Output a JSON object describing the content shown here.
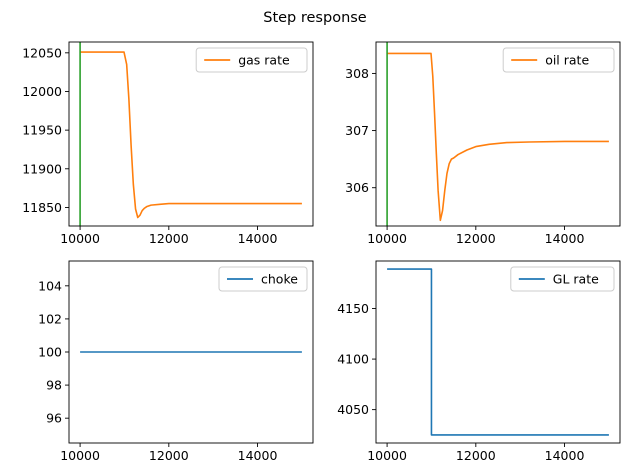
{
  "figure": {
    "title": "Step response"
  },
  "chart_data": [
    {
      "type": "line",
      "name": "gas",
      "xlim": [
        9750,
        15250
      ],
      "ylim": [
        11826,
        12064
      ],
      "xticks": [
        10000,
        12000,
        14000
      ],
      "yticks": [
        11850,
        11900,
        11950,
        12000,
        12050
      ],
      "xtick_labels": [
        "10000",
        "12000",
        "14000"
      ],
      "ytick_labels": [
        "11850",
        "11900",
        "11950",
        "12000",
        "12050"
      ],
      "legend": {
        "position": "top-right"
      },
      "series": [
        {
          "name": "gas rate",
          "color": "#ff7f0e",
          "x": [
            10000,
            10990,
            11050,
            11100,
            11150,
            11200,
            11250,
            11300,
            11350,
            11400,
            11450,
            11500,
            11600,
            11800,
            12000,
            12500,
            13000,
            14000,
            15000
          ],
          "y": [
            12051,
            12051,
            12035,
            11990,
            11930,
            11880,
            11848,
            11837,
            11840,
            11846,
            11849,
            11851,
            11853,
            11854,
            11855,
            11855,
            11855,
            11855,
            11855
          ]
        }
      ],
      "vlines": [
        {
          "x": 10000,
          "color": "#2ca02c"
        }
      ]
    },
    {
      "type": "line",
      "name": "oil",
      "xlim": [
        9750,
        15250
      ],
      "ylim": [
        305.33,
        308.55
      ],
      "xticks": [
        10000,
        12000,
        14000
      ],
      "yticks": [
        306,
        307,
        308
      ],
      "xtick_labels": [
        "10000",
        "12000",
        "14000"
      ],
      "ytick_labels": [
        "306",
        "307",
        "308"
      ],
      "legend": {
        "position": "top-right"
      },
      "series": [
        {
          "name": "oil rate",
          "color": "#ff7f0e",
          "x": [
            10000,
            10990,
            11030,
            11070,
            11110,
            11150,
            11200,
            11250,
            11300,
            11350,
            11400,
            11450,
            11500,
            11600,
            11800,
            12000,
            12300,
            12700,
            13200,
            14000,
            15000
          ],
          "y": [
            308.35,
            308.35,
            307.95,
            307.3,
            306.6,
            305.95,
            305.43,
            305.6,
            305.95,
            306.25,
            306.42,
            306.5,
            306.52,
            306.58,
            306.66,
            306.72,
            306.76,
            306.79,
            306.8,
            306.81,
            306.81
          ]
        }
      ],
      "vlines": [
        {
          "x": 10000,
          "color": "#2ca02c"
        }
      ]
    },
    {
      "type": "line",
      "name": "choke",
      "xlim": [
        9750,
        15250
      ],
      "ylim": [
        94.5,
        105.5
      ],
      "xticks": [
        10000,
        12000,
        14000
      ],
      "yticks": [
        96,
        98,
        100,
        102,
        104
      ],
      "xtick_labels": [
        "10000",
        "12000",
        "14000"
      ],
      "ytick_labels": [
        "96",
        "98",
        "100",
        "102",
        "104"
      ],
      "legend": {
        "position": "top-right"
      },
      "series": [
        {
          "name": "choke",
          "color": "#1f77b4",
          "x": [
            10000,
            15000
          ],
          "y": [
            100,
            100
          ]
        }
      ],
      "vlines": []
    },
    {
      "type": "line",
      "name": "gl",
      "xlim": [
        9750,
        15250
      ],
      "ylim": [
        4017,
        4197
      ],
      "xticks": [
        10000,
        12000,
        14000
      ],
      "yticks": [
        4050,
        4100,
        4150
      ],
      "xtick_labels": [
        "10000",
        "12000",
        "14000"
      ],
      "ytick_labels": [
        "4050",
        "4100",
        "4150"
      ],
      "legend": {
        "position": "top-right"
      },
      "series": [
        {
          "name": "GL rate",
          "color": "#1f77b4",
          "x": [
            10000,
            11000,
            11000,
            15000
          ],
          "y": [
            4189,
            4189,
            4025,
            4025
          ]
        }
      ],
      "vlines": []
    }
  ]
}
